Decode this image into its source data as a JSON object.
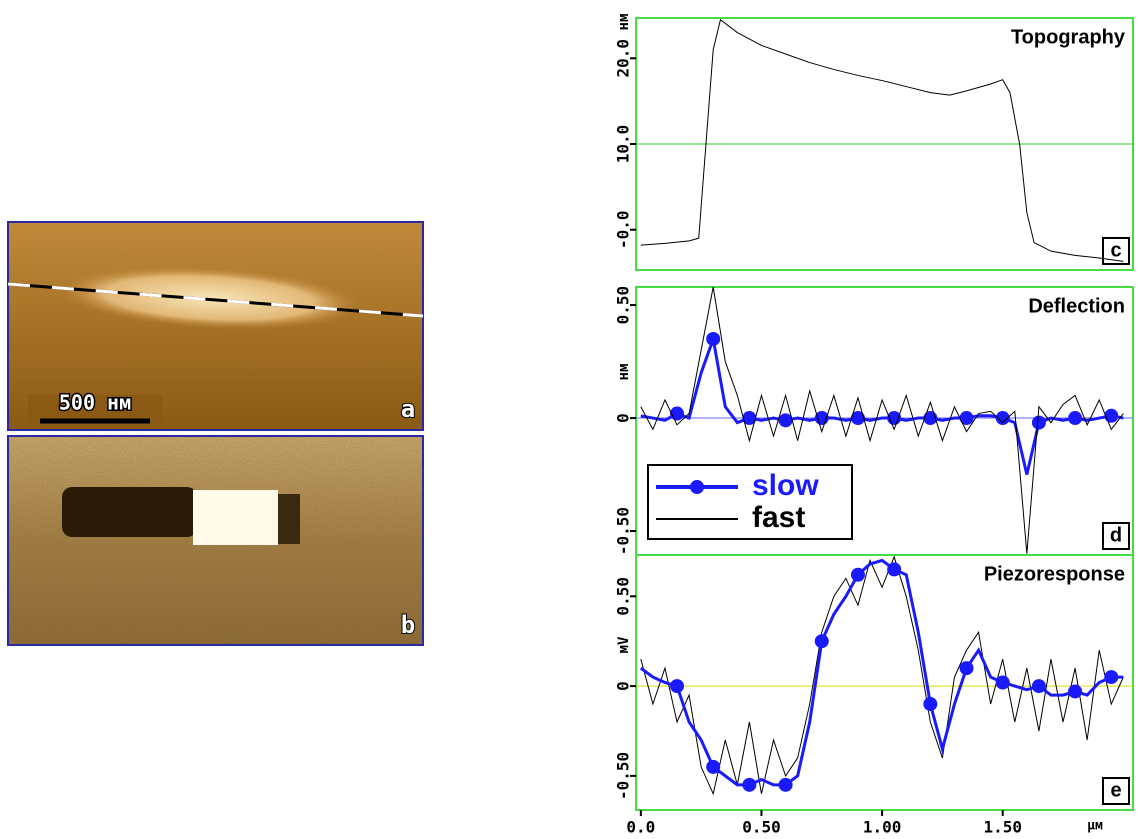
{
  "images": [
    {
      "label": "a",
      "scale_bar": "500 нм"
    },
    {
      "label": "b"
    }
  ],
  "chart_data": [
    {
      "type": "line",
      "title": "Topography",
      "panel_label": "c",
      "y_label": "нм",
      "x": [
        0,
        0.1,
        0.2,
        0.24,
        0.27,
        0.3,
        0.33,
        0.4,
        0.5,
        0.6,
        0.7,
        0.8,
        0.9,
        1.0,
        1.1,
        1.2,
        1.28,
        1.35,
        1.45,
        1.5,
        1.53,
        1.57,
        1.6,
        1.63,
        1.7,
        1.8,
        1.9,
        2.0
      ],
      "series": [
        {
          "name": "fast",
          "color": "#000000",
          "values": [
            -1.8,
            -1.6,
            -1.3,
            -1,
            10,
            21,
            24.5,
            23,
            21.5,
            20.5,
            19.5,
            18.7,
            18,
            17.4,
            16.7,
            16,
            15.7,
            16.2,
            17,
            17.5,
            16,
            10,
            2,
            -1.5,
            -2.5,
            -3,
            -3.3,
            -3.7
          ]
        }
      ],
      "xlim": [
        -0.02,
        2.04
      ],
      "ylim": [
        -4.7,
        24.7
      ],
      "yticks": [
        {
          "value": 0,
          "label": "-0.0"
        },
        {
          "value": 10,
          "label": "10.0"
        },
        {
          "value": 20,
          "label": "20.0"
        }
      ],
      "hline": 10,
      "hline_color": "#33cc33"
    },
    {
      "type": "line",
      "title": "Deflection",
      "panel_label": "d",
      "y_label": "нм",
      "x": [
        0,
        0.05,
        0.1,
        0.15,
        0.2,
        0.25,
        0.3,
        0.35,
        0.4,
        0.45,
        0.5,
        0.55,
        0.6,
        0.65,
        0.7,
        0.75,
        0.8,
        0.85,
        0.9,
        0.95,
        1.0,
        1.05,
        1.1,
        1.15,
        1.2,
        1.25,
        1.3,
        1.35,
        1.4,
        1.45,
        1.5,
        1.55,
        1.6,
        1.65,
        1.7,
        1.75,
        1.8,
        1.85,
        1.9,
        1.95,
        2.0
      ],
      "series": [
        {
          "name": "slow",
          "color": "#1a1aff",
          "markers": true,
          "values": [
            0.01,
            0,
            -0.01,
            0.02,
            0,
            0.2,
            0.35,
            0.05,
            -0.02,
            0,
            -0.01,
            0,
            -0.01,
            0,
            -0.01,
            0,
            0,
            -0.01,
            0,
            -0.01,
            0,
            0,
            -0.01,
            0,
            0,
            -0.01,
            0,
            0,
            0.01,
            0.01,
            0,
            -0.02,
            -0.25,
            -0.02,
            0,
            -0.01,
            0,
            -0.01,
            0,
            0.01,
            0
          ]
        },
        {
          "name": "fast",
          "color": "#000000",
          "values": [
            0.05,
            -0.05,
            0.08,
            -0.03,
            0.02,
            0.3,
            0.58,
            0.25,
            0.1,
            -0.1,
            0.1,
            -0.08,
            0.1,
            -0.1,
            0.12,
            -0.06,
            0.1,
            -0.08,
            0.09,
            -0.1,
            0.08,
            -0.05,
            0.1,
            -0.08,
            0.07,
            -0.1,
            0.05,
            -0.06,
            0.02,
            0.03,
            -0.02,
            0.03,
            -0.6,
            0.05,
            -0.02,
            0.06,
            0.1,
            -0.03,
            0.08,
            -0.05,
            0.02
          ]
        }
      ],
      "xlim": [
        -0.02,
        2.04
      ],
      "ylim": [
        -0.606,
        0.58
      ],
      "yticks": [
        {
          "value": -0.5,
          "label": "-0.50"
        },
        0,
        {
          "value": 0.5,
          "label": "0.50"
        }
      ],
      "hline": 0,
      "hline_color": "#6666ff",
      "legend": "lower left"
    },
    {
      "type": "line",
      "title": "Piezoresponse",
      "panel_label": "e",
      "y_label": "мV",
      "x_label": "µм",
      "x": [
        0,
        0.05,
        0.1,
        0.15,
        0.2,
        0.25,
        0.3,
        0.35,
        0.4,
        0.45,
        0.5,
        0.55,
        0.6,
        0.65,
        0.7,
        0.75,
        0.8,
        0.85,
        0.9,
        0.95,
        1.0,
        1.05,
        1.1,
        1.15,
        1.2,
        1.25,
        1.3,
        1.35,
        1.4,
        1.45,
        1.5,
        1.55,
        1.6,
        1.65,
        1.7,
        1.75,
        1.8,
        1.85,
        1.9,
        1.95,
        2.0
      ],
      "series": [
        {
          "name": "fast",
          "color": "#000000",
          "values": [
            0.15,
            -0.1,
            0.1,
            -0.2,
            -0.05,
            -0.45,
            -0.6,
            -0.3,
            -0.55,
            -0.2,
            -0.6,
            -0.3,
            -0.5,
            -0.4,
            -0.1,
            0.3,
            0.5,
            0.6,
            0.45,
            0.7,
            0.55,
            0.72,
            0.5,
            0.2,
            -0.2,
            -0.4,
            0.05,
            0.2,
            0.3,
            -0.1,
            0.15,
            -0.2,
            0.1,
            -0.25,
            0.15,
            -0.2,
            0.1,
            -0.3,
            0.2,
            -0.1,
            0.05
          ]
        },
        {
          "name": "slow",
          "color": "#1a1aff",
          "markers": true,
          "values": [
            0.1,
            0.05,
            0.02,
            0,
            -0.2,
            -0.3,
            -0.45,
            -0.5,
            -0.55,
            -0.55,
            -0.52,
            -0.55,
            -0.55,
            -0.5,
            -0.2,
            0.25,
            0.4,
            0.5,
            0.62,
            0.68,
            0.7,
            0.65,
            0.62,
            0.3,
            -0.1,
            -0.35,
            -0.1,
            0.1,
            0.2,
            0.05,
            0.02,
            0,
            -0.02,
            0,
            -0.05,
            -0.05,
            -0.03,
            -0.05,
            0.02,
            0.05,
            0.05
          ]
        }
      ],
      "xlim": [
        -0.02,
        2.04
      ],
      "ylim": [
        -0.69,
        0.73
      ],
      "xticks": [
        {
          "value": 0,
          "label": "0.0"
        },
        {
          "value": 0.5,
          "label": "0.50"
        },
        {
          "value": 1,
          "label": "1.00"
        },
        {
          "value": 1.5,
          "label": "1.50"
        }
      ],
      "yticks": [
        {
          "value": -0.5,
          "label": "-0.50"
        },
        0,
        {
          "value": 0.5,
          "label": "0.50"
        }
      ],
      "hline": 0,
      "hline_color": "#dddd00"
    }
  ]
}
